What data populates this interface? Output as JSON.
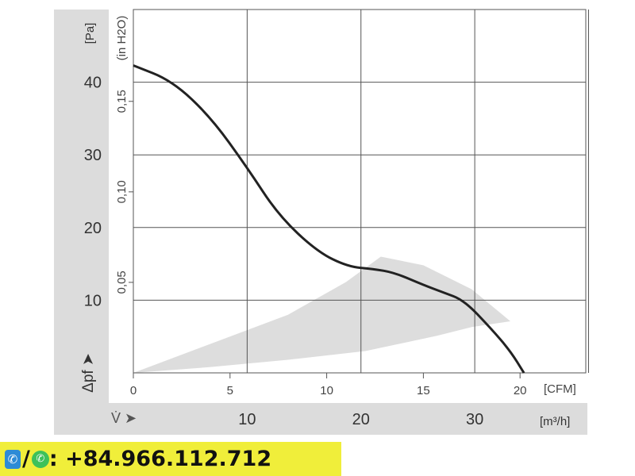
{
  "chart_data": {
    "type": "line",
    "y_unit_left": "[Pa]",
    "y_unit_secondary": "(in H2O)",
    "x_unit_primary": "[CFM]",
    "x_unit_secondary": "[m³/h]",
    "ylabel": "Δpf",
    "xlabel": "V̇",
    "ylim": [
      0,
      50
    ],
    "xlim": [
      0,
      23.4
    ],
    "grid": true,
    "y_ticks_pa": [
      10,
      20,
      30,
      40
    ],
    "y_ticks_inh2o": [
      "0,05",
      "0,10",
      "0,15"
    ],
    "y_ticks_inh2o_values": [
      0.05,
      0.1,
      0.15
    ],
    "x_ticks_cfm": [
      0,
      5,
      10,
      15,
      20
    ],
    "x_ticks_m3h": [
      10,
      20,
      30
    ],
    "series": [
      {
        "x": [
          0,
          2,
          4,
          5.9,
          7.5,
          9.5,
          11.1,
          12.4,
          13.5,
          15,
          16,
          17.1,
          18.5,
          19.5,
          20.2
        ],
        "y": [
          42.3,
          40.2,
          35.2,
          28.2,
          21.7,
          16.7,
          14.6,
          14.3,
          13.8,
          12.1,
          11.1,
          10,
          6.1,
          3,
          0
        ],
        "color": "#222222"
      }
    ],
    "operating_range": {
      "x": [
        0,
        4,
        8,
        11,
        12.8,
        15,
        17.5,
        19.5,
        17.5,
        15.7,
        12,
        8,
        4,
        0
      ],
      "y": [
        0,
        4,
        8,
        12.5,
        16,
        14.8,
        11.5,
        7.1,
        6.3,
        5.1,
        3.0,
        1.8,
        0.8,
        0
      ],
      "color": "#dddddd"
    }
  },
  "banner": {
    "phone_icon": "phone-icon",
    "whatsapp_icon": "whatsapp-icon",
    "separator": "/",
    "text": ": +84.966.112.712",
    "color": "#f0ee3a"
  }
}
